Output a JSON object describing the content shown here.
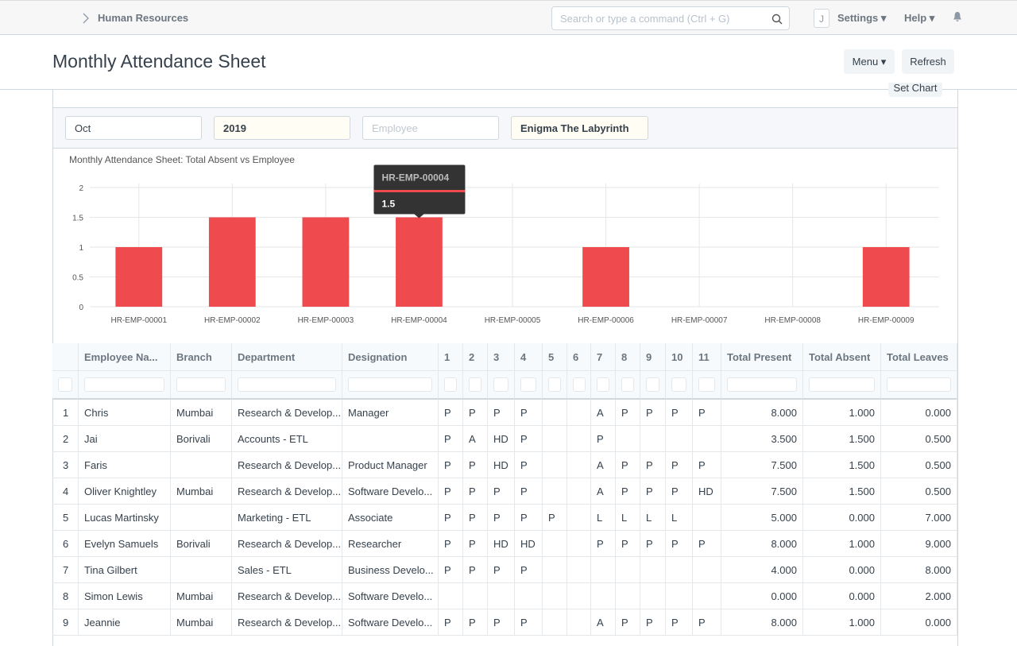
{
  "navbar": {
    "breadcrumb": "Human Resources",
    "search_placeholder": "Search or type a command (Ctrl + G)",
    "avatar": "J",
    "settings": "Settings",
    "help": "Help"
  },
  "page": {
    "title": "Monthly Attendance Sheet",
    "menu": "Menu",
    "refresh": "Refresh",
    "set_chart": "Set Chart"
  },
  "filters": {
    "month": "Oct",
    "year": "2019",
    "employee_placeholder": "Employee",
    "company": "Enigma The Labyrinth"
  },
  "chart_data": {
    "type": "bar",
    "title": "Monthly Attendance Sheet: Total Absent vs Employee",
    "categories": [
      "HR-EMP-00001",
      "HR-EMP-00002",
      "HR-EMP-00003",
      "HR-EMP-00004",
      "HR-EMP-00005",
      "HR-EMP-00006",
      "HR-EMP-00007",
      "HR-EMP-00008",
      "HR-EMP-00009"
    ],
    "values": [
      1,
      1.5,
      1.5,
      1.5,
      0,
      1,
      0,
      0,
      1
    ],
    "color": "#ef4a4d",
    "ylim": [
      0,
      2
    ],
    "yticks": [
      0,
      0.5,
      1,
      1.5,
      2
    ],
    "grid": true,
    "tooltip_index": 3
  },
  "table": {
    "columns": [
      "Employee Na...",
      "Branch",
      "Department",
      "Designation",
      "1",
      "2",
      "3",
      "4",
      "5",
      "6",
      "7",
      "8",
      "9",
      "10",
      "11",
      "Total Present",
      "Total Absent",
      "Total Leaves"
    ],
    "rows": [
      [
        "1",
        "Chris",
        "Mumbai",
        "Research & Develop...",
        "Manager",
        "P",
        "P",
        "P",
        "P",
        null,
        null,
        "A",
        "P",
        "P",
        "P",
        "P",
        "8.000",
        "1.000",
        "0.000"
      ],
      [
        "2",
        "Jai",
        "Borivali",
        "Accounts - ETL",
        null,
        "P",
        "A",
        "HD",
        "P",
        null,
        null,
        "P",
        null,
        null,
        null,
        null,
        "3.500",
        "1.500",
        "0.500"
      ],
      [
        "3",
        "Faris",
        null,
        "Research & Develop...",
        "Product Manager",
        "P",
        "P",
        "HD",
        "P",
        null,
        null,
        "A",
        "P",
        "P",
        "P",
        "P",
        "7.500",
        "1.500",
        "0.500"
      ],
      [
        "4",
        "Oliver Knightley",
        "Mumbai",
        "Research & Develop...",
        "Software Develo...",
        "P",
        "P",
        "P",
        "P",
        null,
        null,
        "A",
        "P",
        "P",
        "P",
        "HD",
        "7.500",
        "1.500",
        "0.500"
      ],
      [
        "5",
        "Lucas Martinsky",
        null,
        "Marketing - ETL",
        "Associate",
        "P",
        "P",
        "P",
        "P",
        "P",
        null,
        "L",
        "L",
        "L",
        "L",
        null,
        "5.000",
        "0.000",
        "7.000"
      ],
      [
        "6",
        "Evelyn Samuels",
        "Borivali",
        "Research & Develop...",
        "Researcher",
        "P",
        "P",
        "HD",
        "HD",
        null,
        null,
        "P",
        "P",
        "P",
        "P",
        "P",
        "8.000",
        "1.000",
        "9.000"
      ],
      [
        "7",
        "Tina Gilbert",
        null,
        "Sales - ETL",
        "Business Develo...",
        "P",
        "P",
        "P",
        "P",
        null,
        null,
        null,
        null,
        null,
        null,
        null,
        "4.000",
        "0.000",
        "8.000"
      ],
      [
        "8",
        "Simon Lewis",
        "Mumbai",
        "Research & Develop...",
        "Software Develo...",
        null,
        null,
        null,
        null,
        null,
        null,
        null,
        null,
        null,
        null,
        null,
        "0.000",
        "0.000",
        "2.000"
      ],
      [
        "9",
        "Jeannie",
        "Mumbai",
        "Research & Develop...",
        "Software Develo...",
        "P",
        "P",
        "P",
        "P",
        null,
        null,
        "A",
        "P",
        "P",
        "P",
        "P",
        "8.000",
        "1.000",
        "0.000"
      ]
    ]
  }
}
